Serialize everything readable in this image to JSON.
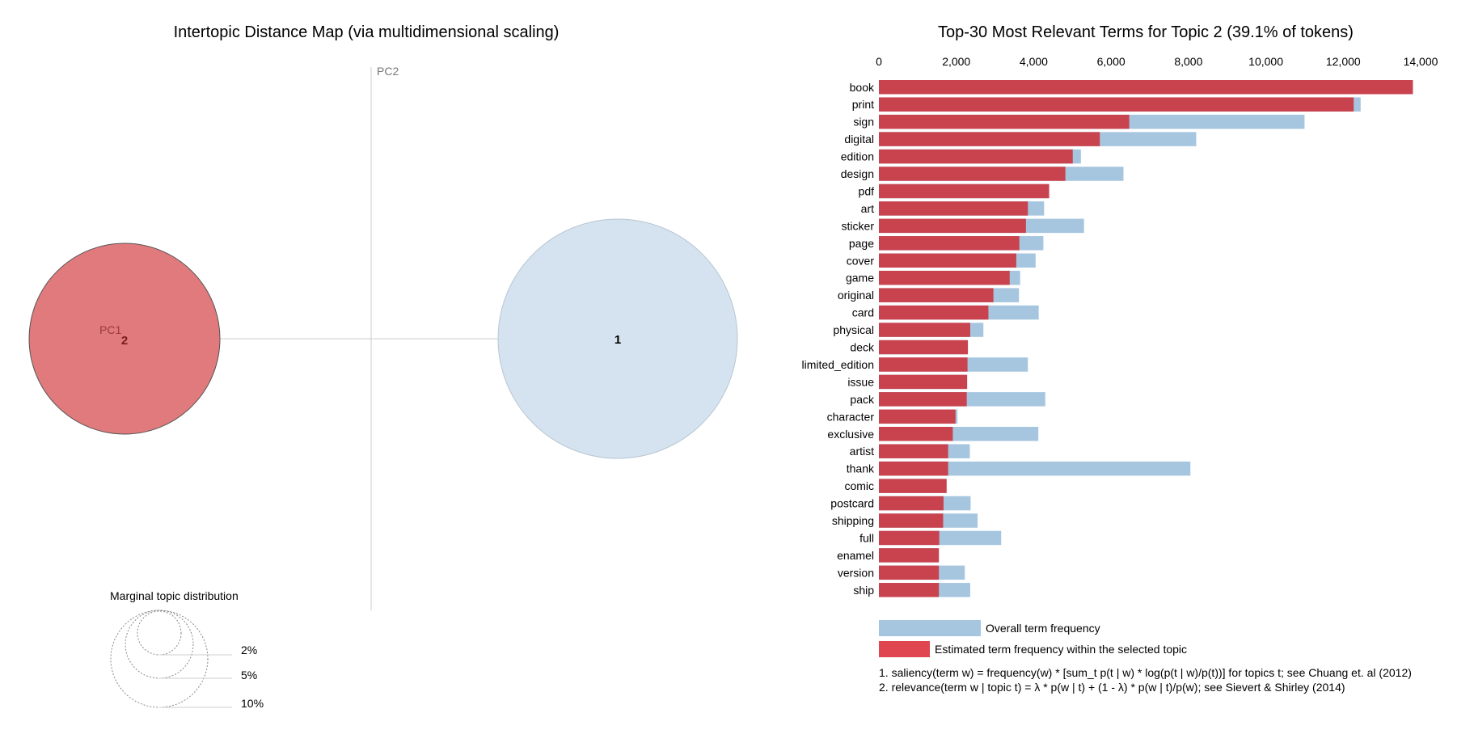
{
  "left": {
    "title": "Intertopic Distance Map (via multidimensional scaling)",
    "pc1_label": "PC1",
    "pc2_label": "PC2",
    "topics": [
      {
        "id": "2",
        "label": "2",
        "selected": true
      },
      {
        "id": "1",
        "label": "1",
        "selected": false
      }
    ],
    "marginal": {
      "title": "Marginal topic distribution",
      "labels": [
        "2%",
        "5%",
        "10%"
      ]
    }
  },
  "legend": {
    "overall": "Overall term frequency",
    "estimated": "Estimated term frequency within the selected topic"
  },
  "footnotes": {
    "saliency": "1. saliency(term w) = frequency(w) * [sum_t p(t | w) * log(p(t | w)/p(t))] for topics t; see Chuang et. al (2012)",
    "relevance": "2. relevance(term w | topic t) = λ * p(w | t) + (1 - λ) * p(w | t)/p(w); see Sievert & Shirley (2014)"
  },
  "colors": {
    "red": "#c9434f",
    "blue": "#a6c6e0",
    "bubble_selected": "#e07a7c",
    "bubble_other": "#d2e1ee"
  },
  "chart_data": {
    "type": "bar",
    "orientation": "horizontal",
    "title": "Top-30 Most Relevant Terms for Topic 2 (39.1% of tokens)",
    "xlim": [
      0,
      14000
    ],
    "xticks": [
      0,
      2000,
      4000,
      6000,
      8000,
      10000,
      12000,
      14000
    ],
    "xtick_labels": [
      "0",
      "2,000",
      "4,000",
      "6,000",
      "8,000",
      "10,000",
      "12,000",
      "14,000"
    ],
    "categories": [
      "book",
      "print",
      "sign",
      "digital",
      "edition",
      "design",
      "pdf",
      "art",
      "sticker",
      "page",
      "cover",
      "game",
      "original",
      "card",
      "physical",
      "deck",
      "limited_edition",
      "issue",
      "pack",
      "character",
      "exclusive",
      "artist",
      "thank",
      "comic",
      "postcard",
      "shipping",
      "full",
      "enamel",
      "version",
      "ship"
    ],
    "series": [
      {
        "name": "Overall term frequency",
        "values": [
          13800,
          12450,
          11000,
          8200,
          5220,
          6320,
          4400,
          4270,
          5300,
          4250,
          4050,
          3650,
          3620,
          4130,
          2700,
          2300,
          3850,
          2280,
          4300,
          2030,
          4120,
          2350,
          8050,
          1750,
          2370,
          2550,
          3160,
          1550,
          2220,
          2360
        ]
      },
      {
        "name": "Estimated term frequency within the selected topic",
        "values": [
          13800,
          12270,
          6470,
          5710,
          5010,
          4820,
          4400,
          3850,
          3800,
          3630,
          3550,
          3380,
          2960,
          2830,
          2360,
          2300,
          2290,
          2280,
          2270,
          1980,
          1910,
          1790,
          1790,
          1750,
          1670,
          1660,
          1560,
          1550,
          1550,
          1550
        ]
      }
    ]
  }
}
